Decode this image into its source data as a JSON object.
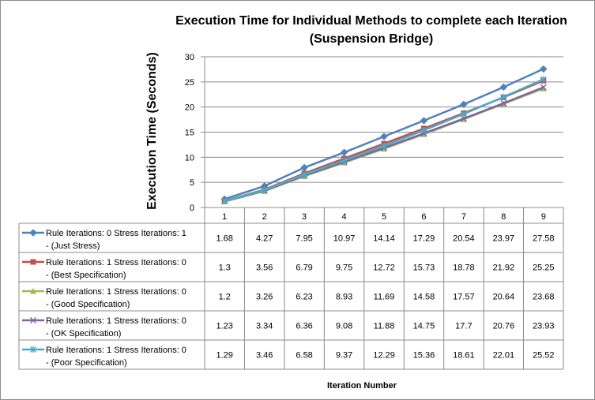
{
  "chart_data": {
    "type": "line",
    "title_line1": "Execution Time for Individual Methods  to complete each Iteration",
    "title_line2": "(Suspension Bridge)",
    "xlabel": "Iteration Number",
    "ylabel": "Execution Time (Seconds)",
    "ylim": [
      0,
      30
    ],
    "yticks": [
      0,
      5,
      10,
      15,
      20,
      25,
      30
    ],
    "categories": [
      "1",
      "2",
      "3",
      "4",
      "5",
      "6",
      "7",
      "8",
      "9"
    ],
    "grid": true,
    "legend": "data-table-left",
    "series": [
      {
        "label_line1": "Rule Iterations: 0 Stress Iterations: 1",
        "label_line2": "- (Just Stress)",
        "color": "#4F81BD",
        "marker": "diamond",
        "values": [
          1.68,
          4.27,
          7.95,
          10.97,
          14.14,
          17.29,
          20.54,
          23.97,
          27.58
        ],
        "labels": [
          "1.68",
          "4.27",
          "7.95",
          "10.97",
          "14.14",
          "17.29",
          "20.54",
          "23.97",
          "27.58"
        ]
      },
      {
        "label_line1": "Rule Iterations: 1  Stress Iterations: 0",
        "label_line2": "- (Best Specification)",
        "color": "#C0504D",
        "marker": "square",
        "values": [
          1.3,
          3.56,
          6.79,
          9.75,
          12.72,
          15.73,
          18.78,
          21.92,
          25.25
        ],
        "labels": [
          "1.3",
          "3.56",
          "6.79",
          "9.75",
          "12.72",
          "15.73",
          "18.78",
          "21.92",
          "25.25"
        ]
      },
      {
        "label_line1": "Rule Iterations: 1 Stress Iterations: 0",
        "label_line2": "- (Good Specification)",
        "color": "#9BBB59",
        "marker": "triangle",
        "values": [
          1.2,
          3.26,
          6.23,
          8.93,
          11.69,
          14.58,
          17.57,
          20.64,
          23.68
        ],
        "labels": [
          "1.2",
          "3.26",
          "6.23",
          "8.93",
          "11.69",
          "14.58",
          "17.57",
          "20.64",
          "23.68"
        ]
      },
      {
        "label_line1": "Rule Iterations: 1  Stress Iterations: 0",
        "label_line2": "- (OK Specification)",
        "color": "#8064A2",
        "marker": "x",
        "values": [
          1.23,
          3.34,
          6.36,
          9.08,
          11.88,
          14.75,
          17.7,
          20.76,
          23.93
        ],
        "labels": [
          "1.23",
          "3.34",
          "6.36",
          "9.08",
          "11.88",
          "14.75",
          "17.7",
          "20.76",
          "23.93"
        ]
      },
      {
        "label_line1": "Rule Iterations: 1  Stress Iterations: 0",
        "label_line2": "- (Poor Specification)",
        "color": "#4BACC6",
        "marker": "star",
        "values": [
          1.29,
          3.46,
          6.58,
          9.37,
          12.29,
          15.36,
          18.61,
          22.01,
          25.52
        ],
        "labels": [
          "1.29",
          "3.46",
          "6.58",
          "9.37",
          "12.29",
          "15.36",
          "18.61",
          "22.01",
          "25.52"
        ]
      }
    ]
  }
}
